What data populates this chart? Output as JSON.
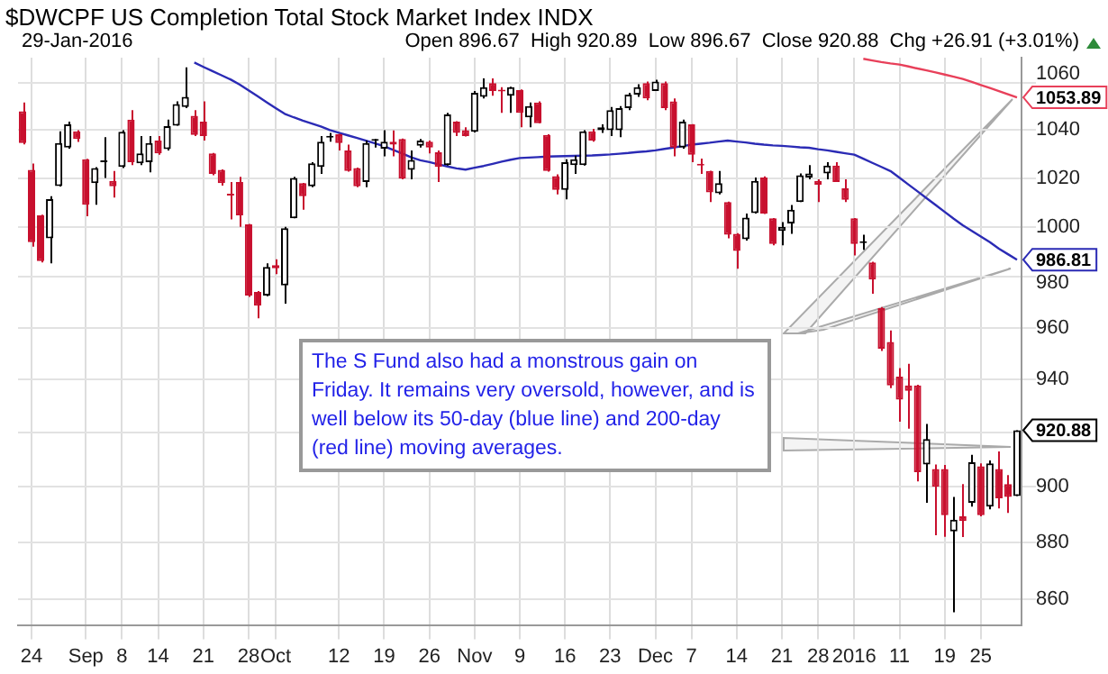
{
  "chart_data": {
    "type": "candlestick",
    "title": "$DWCPF US Completion Total Stock Market Index INDX",
    "subtitle": "29-Jan-2016",
    "categories": [
      null,
      "24",
      null,
      null,
      null,
      null,
      null,
      "Sep",
      null,
      null,
      null,
      "8",
      null,
      null,
      null,
      "14",
      null,
      null,
      null,
      null,
      "21",
      null,
      null,
      null,
      null,
      "28",
      null,
      null,
      "Oct",
      null,
      null,
      null,
      null,
      null,
      null,
      "12",
      null,
      null,
      null,
      null,
      "19",
      null,
      null,
      null,
      null,
      "26",
      null,
      null,
      null,
      null,
      "Nov",
      null,
      null,
      null,
      null,
      "9",
      null,
      null,
      null,
      null,
      "16",
      null,
      null,
      null,
      null,
      "23",
      null,
      null,
      null,
      null,
      "Dec",
      null,
      null,
      null,
      "7",
      null,
      null,
      null,
      null,
      "14",
      null,
      null,
      null,
      null,
      "21",
      null,
      null,
      null,
      "28",
      null,
      null,
      null,
      "2016",
      null,
      null,
      null,
      null,
      "11",
      null,
      null,
      null,
      null,
      "19",
      null,
      null,
      null,
      "25",
      null,
      null,
      null,
      null
    ],
    "ohlc": [
      [
        1048,
        1051.7,
        1034,
        1034.6
      ],
      [
        1023.4,
        1026,
        992,
        993.8
      ],
      [
        1004.7,
        1005,
        985.7,
        986.2
      ],
      [
        995.4,
        1012.5,
        985.3,
        1011.3
      ],
      [
        1016.7,
        1039.5,
        1016.5,
        1034.6
      ],
      [
        1032.7,
        1043.6,
        1032.2,
        1042.4
      ],
      [
        1039.5,
        1040,
        1035,
        1036.3
      ],
      [
        1027.8,
        1028,
        1004.3,
        1009
      ],
      [
        1017.9,
        1024.5,
        1009,
        1024.1
      ],
      [
        1026.6,
        1037,
        1020,
        1026.8
      ],
      [
        1018.8,
        1022.9,
        1012,
        1016.6
      ],
      [
        1024.6,
        1040,
        1024.1,
        1039.3
      ],
      [
        1044.4,
        1048.5,
        1025.4,
        1026.6
      ],
      [
        1026.1,
        1037.5,
        1025.4,
        1030.2
      ],
      [
        1026.6,
        1037.5,
        1022.4,
        1034.6
      ],
      [
        1035.6,
        1037.5,
        1029.7,
        1030.2
      ],
      [
        1032,
        1044.4,
        1031.5,
        1041.7
      ],
      [
        1041.9,
        1052.2,
        1041.9,
        1051
      ],
      [
        1049.8,
        1066.8,
        1049.3,
        1054.1
      ],
      [
        1046.1,
        1048.5,
        1037.5,
        1038
      ],
      [
        1043.6,
        1052.2,
        1035.6,
        1037.5
      ],
      [
        1030.2,
        1030.4,
        1021.2,
        1021.7
      ],
      [
        1023.4,
        1023.6,
        1016.9,
        1017.9
      ],
      [
        1013.3,
        1018.4,
        1003,
        1012.8
      ],
      [
        1018.4,
        1020.5,
        1000,
        1004.7
      ],
      [
        1001,
        1001.2,
        972,
        972.6
      ],
      [
        974,
        974.3,
        963.6,
        968.6
      ],
      [
        972.6,
        985.3,
        972.3,
        983.9
      ],
      [
        984.6,
        987,
        981,
        983.4
      ],
      [
        976.6,
        1000,
        969.4,
        999.5
      ],
      [
        1003.5,
        1020.5,
        1003.5,
        1020
      ],
      [
        1017.9,
        1018,
        1007,
        1012.5
      ],
      [
        1016.6,
        1026.6,
        1016.2,
        1026.1
      ],
      [
        1024.6,
        1037.5,
        1021.7,
        1035.1
      ],
      [
        1036.8,
        1038.8,
        1035.1,
        1037
      ],
      [
        1038.3,
        1038.5,
        1031.5,
        1034.6
      ],
      [
        1031.5,
        1033.9,
        1022.6,
        1022.9
      ],
      [
        1024.1,
        1024.3,
        1016.2,
        1016.6
      ],
      [
        1018.4,
        1035.6,
        1016.2,
        1034.6
      ],
      [
        1035.5,
        1036.3,
        1032.7,
        1035.6
      ],
      [
        1032.2,
        1040,
        1029,
        1035.1
      ],
      [
        1035.1,
        1039.9,
        1029,
        1033.9
      ],
      [
        1036.3,
        1036.5,
        1019.5,
        1019.8
      ],
      [
        1023.4,
        1031.5,
        1019.5,
        1027.5
      ],
      [
        1033.4,
        1036.3,
        1032.7,
        1035.6
      ],
      [
        1035.1,
        1035.6,
        1030.2,
        1032.7
      ],
      [
        1030.7,
        1031.5,
        1018.4,
        1024.6
      ],
      [
        1025.4,
        1047.3,
        1025.2,
        1046.6
      ],
      [
        1043.6,
        1043.8,
        1037.5,
        1038.8
      ],
      [
        1040,
        1041.2,
        1037.3,
        1037.5
      ],
      [
        1039.3,
        1056.6,
        1039,
        1055.9
      ],
      [
        1054.1,
        1062,
        1053.4,
        1058.3
      ],
      [
        1060,
        1062,
        1054.6,
        1056.6
      ],
      [
        1056.8,
        1058.3,
        1047.3,
        1056.4
      ],
      [
        1054.6,
        1058.5,
        1047.3,
        1058.3
      ],
      [
        1057,
        1057.3,
        1041.2,
        1047.3
      ],
      [
        1045.4,
        1051.7,
        1041.2,
        1050.2
      ],
      [
        1051.7,
        1052.2,
        1042.9,
        1042.9
      ],
      [
        1038,
        1038.3,
        1022.6,
        1022.9
      ],
      [
        1020.8,
        1021.5,
        1013.3,
        1015.1
      ],
      [
        1015.1,
        1027.8,
        1011.2,
        1026.6
      ],
      [
        1025.4,
        1029.3,
        1021.7,
        1027.8
      ],
      [
        1025.4,
        1040,
        1025.2,
        1039.5
      ],
      [
        1039.5,
        1040.5,
        1035.1,
        1035.6
      ],
      [
        1040,
        1042.4,
        1038.8,
        1041.2
      ],
      [
        1040,
        1049.8,
        1037.5,
        1048.5
      ],
      [
        1040,
        1050.2,
        1037,
        1049.3
      ],
      [
        1049.3,
        1055.9,
        1048.5,
        1055.1
      ],
      [
        1055.1,
        1059.5,
        1054.1,
        1058.3
      ],
      [
        1060,
        1060.7,
        1052.7,
        1053.4
      ],
      [
        1056.6,
        1061.5,
        1056.6,
        1060.7
      ],
      [
        1060,
        1060.7,
        1048.5,
        1049.3
      ],
      [
        1052.2,
        1053.4,
        1029,
        1032.7
      ],
      [
        1032.7,
        1044.4,
        1032.2,
        1043.6
      ],
      [
        1042.4,
        1042.5,
        1026.6,
        1029.7
      ],
      [
        1025.6,
        1028.1,
        1021.7,
        1025.2
      ],
      [
        1022.9,
        1023,
        1010.1,
        1014.1
      ],
      [
        1013.7,
        1022.9,
        1013.3,
        1017.9
      ],
      [
        1010.1,
        1010.3,
        995.4,
        996.8
      ],
      [
        997.2,
        997.5,
        983.2,
        990.3
      ],
      [
        995,
        1005.4,
        994.5,
        1003.8
      ],
      [
        1005.6,
        1020.2,
        1005.4,
        1018.8
      ],
      [
        1020.2,
        1020.7,
        1005.2,
        1005.4
      ],
      [
        1003.5,
        1003.6,
        992.6,
        993.1
      ],
      [
        998.4,
        1001.9,
        992.6,
        1000
      ],
      [
        1001.4,
        1008.9,
        997.2,
        1007
      ],
      [
        1010.1,
        1021.9,
        1010.1,
        1021.2
      ],
      [
        1020.2,
        1025.4,
        1019.5,
        1021.9
      ],
      [
        1018.8,
        1019.5,
        1010.1,
        1017.2
      ],
      [
        1021.9,
        1026.6,
        1019.5,
        1025.2
      ],
      [
        1025.2,
        1026.6,
        1018.4,
        1018.4
      ],
      [
        1015.8,
        1019.5,
        1010.1,
        1011
      ],
      [
        1003.5,
        1003.6,
        988.5,
        993.1
      ],
      [
        993.5,
        996.8,
        990.8,
        993.8
      ],
      [
        985.7,
        986,
        973.3,
        978.9
      ],
      [
        967.6,
        968,
        951,
        951.8
      ],
      [
        954.4,
        958.9,
        936.7,
        937.8
      ],
      [
        941.1,
        944.4,
        924.1,
        932.4
      ],
      [
        937.8,
        946,
        921.5,
        935.7
      ],
      [
        937.8,
        938,
        902,
        905.4
      ],
      [
        908.2,
        923.2,
        894.2,
        917.6
      ],
      [
        906.5,
        908.2,
        882.5,
        900
      ],
      [
        906.5,
        908,
        882,
        889.7
      ],
      [
        883.9,
        896.3,
        855.4,
        888.1
      ],
      [
        889.3,
        901,
        881.9,
        887.6
      ],
      [
        894.2,
        911.8,
        892.8,
        909
      ],
      [
        907.5,
        908.6,
        889.3,
        889.7
      ],
      [
        892.8,
        909.7,
        891.8,
        908.6
      ],
      [
        906.5,
        913,
        892.2,
        895.8
      ],
      [
        901,
        904.3,
        890.5,
        896.3
      ],
      [
        896.67,
        920.89,
        896.67,
        920.88
      ]
    ],
    "colors": [
      "#c8102e",
      "#c8102e",
      "#c8102e",
      "#000000",
      "#000000",
      "#000000",
      "#c8102e",
      "#c8102e",
      "#000000",
      "#000000",
      "#c8102e",
      "#000000",
      "#c8102e",
      "#000000",
      "#000000",
      "#c8102e",
      "#000000",
      "#000000",
      "#000000",
      "#c8102e",
      "#c8102e",
      "#c8102e",
      "#c8102e",
      "#c8102e",
      "#c8102e",
      "#c8102e",
      "#c8102e",
      "#000000",
      "#c8102e",
      "#000000",
      "#000000",
      "#c8102e",
      "#000000",
      "#000000",
      "#000000",
      "#c8102e",
      "#c8102e",
      "#c8102e",
      "#000000",
      "#000000",
      "#000000",
      "#c8102e",
      "#c8102e",
      "#000000",
      "#000000",
      "#c8102e",
      "#c8102e",
      "#000000",
      "#c8102e",
      "#c8102e",
      "#000000",
      "#000000",
      "#c8102e",
      "#c8102e",
      "#000000",
      "#c8102e",
      "#000000",
      "#c8102e",
      "#c8102e",
      "#c8102e",
      "#000000",
      "#000000",
      "#000000",
      "#c8102e",
      "#000000",
      "#000000",
      "#000000",
      "#000000",
      "#000000",
      "#c8102e",
      "#000000",
      "#c8102e",
      "#c8102e",
      "#000000",
      "#c8102e",
      "#c8102e",
      "#c8102e",
      "#000000",
      "#c8102e",
      "#c8102e",
      "#000000",
      "#000000",
      "#c8102e",
      "#c8102e",
      "#000000",
      "#000000",
      "#000000",
      "#000000",
      "#c8102e",
      "#000000",
      "#c8102e",
      "#c8102e",
      "#c8102e",
      "#000000",
      "#c8102e",
      "#c8102e",
      "#c8102e",
      "#c8102e",
      "#c8102e",
      "#c8102e",
      "#000000",
      "#c8102e",
      "#c8102e",
      "#000000",
      "#c8102e",
      "#000000",
      "#c8102e",
      "#000000",
      "#c8102e",
      "#c8102e",
      "#000000"
    ],
    "value_labels": [
      null,
      null,
      null,
      null,
      null,
      null,
      null,
      null,
      null,
      null,
      null,
      null,
      null,
      null,
      null,
      null,
      null,
      null,
      null,
      null,
      null,
      null,
      null,
      null,
      null,
      null,
      null,
      null,
      null,
      null,
      null,
      null,
      null,
      null,
      null,
      null,
      null,
      null,
      null,
      null,
      null,
      null,
      null,
      null,
      null,
      null,
      null,
      null,
      null,
      null,
      null,
      null,
      null,
      null,
      null,
      null,
      null,
      null,
      null,
      null,
      null,
      null,
      null,
      null,
      null,
      null,
      null,
      null,
      null,
      null,
      null,
      null,
      null,
      null,
      null,
      null,
      null,
      null,
      null,
      null,
      null,
      null,
      null,
      null,
      null,
      null,
      null,
      null,
      null,
      null,
      null,
      null,
      null,
      null,
      null,
      null,
      null,
      null,
      null,
      null,
      null,
      null,
      null,
      null,
      null,
      null,
      null,
      null,
      null,
      null,
      "920.88"
    ],
    "series": [
      {
        "type": "line",
        "color": "#2b2bb5",
        "values": [
          null,
          null,
          null,
          null,
          null,
          null,
          null,
          null,
          null,
          null,
          null,
          null,
          null,
          null,
          null,
          null,
          null,
          null,
          null,
          1068.9,
          1067,
          1065.2,
          1063.4,
          1061.6,
          1059.4,
          1056.9,
          1054.4,
          1051.8,
          1049.3,
          1046.9,
          1045.4,
          1044,
          1042.8,
          1041.5,
          1040,
          1038.9,
          1037.8,
          1036.7,
          1035.6,
          1034.4,
          1033.2,
          1031.7,
          1030.2,
          1028.6,
          1027.4,
          1026.6,
          1025.7,
          1024.8,
          1024,
          1023.5,
          1024.3,
          1025,
          1025.9,
          1026.8,
          1027.6,
          1028.3,
          1028.5,
          1028.7,
          1028.9,
          1029,
          1029.1,
          1029.2,
          1029.3,
          1029.4,
          1029.6,
          1029.8,
          1030.1,
          1030.4,
          1030.8,
          1031.1,
          1031.5,
          1032.1,
          1032.7,
          1033.3,
          1033.9,
          1034.3,
          1034.7,
          1035.2,
          1035.6,
          1035.2,
          1034.8,
          1034.3,
          1033.9,
          1033.6,
          1033.4,
          1033.1,
          1032.8,
          1032.6,
          1032,
          1031.5,
          1030.9,
          1030.3,
          1029.7,
          1028,
          1026.3,
          1024.6,
          1022.9,
          1020.1,
          1017.3,
          1014.5,
          1011.7,
          1008.9,
          1006.1,
          1003.3,
          1000.7,
          998.4,
          996.1,
          993.8,
          991.2,
          989,
          986.81
        ],
        "value_labels": [
          null,
          null,
          null,
          null,
          null,
          null,
          null,
          null,
          null,
          null,
          null,
          null,
          null,
          null,
          null,
          null,
          null,
          null,
          null,
          null,
          null,
          null,
          null,
          null,
          null,
          null,
          null,
          null,
          null,
          null,
          null,
          null,
          null,
          null,
          null,
          null,
          null,
          null,
          null,
          null,
          null,
          null,
          null,
          null,
          null,
          null,
          null,
          null,
          null,
          null,
          null,
          null,
          null,
          null,
          null,
          null,
          null,
          null,
          null,
          null,
          null,
          null,
          null,
          null,
          null,
          null,
          null,
          null,
          null,
          null,
          null,
          null,
          null,
          null,
          null,
          null,
          null,
          null,
          null,
          null,
          null,
          null,
          null,
          null,
          null,
          null,
          null,
          null,
          null,
          null,
          null,
          null,
          null,
          null,
          null,
          null,
          null,
          null,
          null,
          null,
          null,
          null,
          null,
          null,
          null,
          null,
          null,
          null,
          null,
          null,
          "986.81"
        ]
      },
      {
        "type": "line",
        "color": "#e8405a",
        "values": [
          null,
          null,
          null,
          null,
          null,
          null,
          null,
          null,
          null,
          null,
          null,
          null,
          null,
          null,
          null,
          null,
          null,
          null,
          null,
          null,
          null,
          null,
          null,
          null,
          null,
          null,
          null,
          null,
          null,
          null,
          null,
          null,
          null,
          null,
          null,
          null,
          null,
          null,
          null,
          null,
          null,
          null,
          null,
          null,
          null,
          null,
          null,
          null,
          null,
          null,
          null,
          null,
          null,
          null,
          null,
          null,
          null,
          null,
          null,
          null,
          null,
          null,
          null,
          null,
          null,
          null,
          null,
          null,
          null,
          null,
          null,
          null,
          null,
          null,
          null,
          null,
          null,
          null,
          null,
          null,
          null,
          null,
          null,
          null,
          null,
          null,
          null,
          null,
          null,
          null,
          null,
          null,
          null,
          1070.5,
          1069.8,
          1069.1,
          1068.5,
          1068,
          1067.2,
          1066.3,
          1065.5,
          1064.6,
          1063.7,
          1062.8,
          1061.8,
          1060.5,
          1059.2,
          1057.9,
          1056.6,
          1055.2,
          1053.89
        ],
        "value_labels": [
          null,
          null,
          null,
          null,
          null,
          null,
          null,
          null,
          null,
          null,
          null,
          null,
          null,
          null,
          null,
          null,
          null,
          null,
          null,
          null,
          null,
          null,
          null,
          null,
          null,
          null,
          null,
          null,
          null,
          null,
          null,
          null,
          null,
          null,
          null,
          null,
          null,
          null,
          null,
          null,
          null,
          null,
          null,
          null,
          null,
          null,
          null,
          null,
          null,
          null,
          null,
          null,
          null,
          null,
          null,
          null,
          null,
          null,
          null,
          null,
          null,
          null,
          null,
          null,
          null,
          null,
          null,
          null,
          null,
          null,
          null,
          null,
          null,
          null,
          null,
          null,
          null,
          null,
          null,
          null,
          null,
          null,
          null,
          null,
          null,
          null,
          null,
          null,
          null,
          null,
          null,
          null,
          null,
          null,
          null,
          null,
          null,
          null,
          null,
          null,
          null,
          null,
          null,
          null,
          null,
          null,
          null,
          null,
          null,
          null,
          "1053.89"
        ]
      }
    ],
    "ylim": [
      851,
      1071
    ],
    "yticks": [
      860,
      880,
      900,
      {
        "value": 920,
        "label": null
      },
      940,
      960,
      980,
      1000,
      1020,
      1040,
      1060
    ],
    "log": true,
    "grid": true,
    "annotations": [
      "Open 896.67  High 920.89  Low 896.67  Close 920.88  Chg +26.91 (+3.01%)",
      "The S Fund also had a monstrous gain on Friday. It remains very oversold, however, and is well below its 50-day (blue line) and 200-day (red line) moving averages."
    ]
  }
}
